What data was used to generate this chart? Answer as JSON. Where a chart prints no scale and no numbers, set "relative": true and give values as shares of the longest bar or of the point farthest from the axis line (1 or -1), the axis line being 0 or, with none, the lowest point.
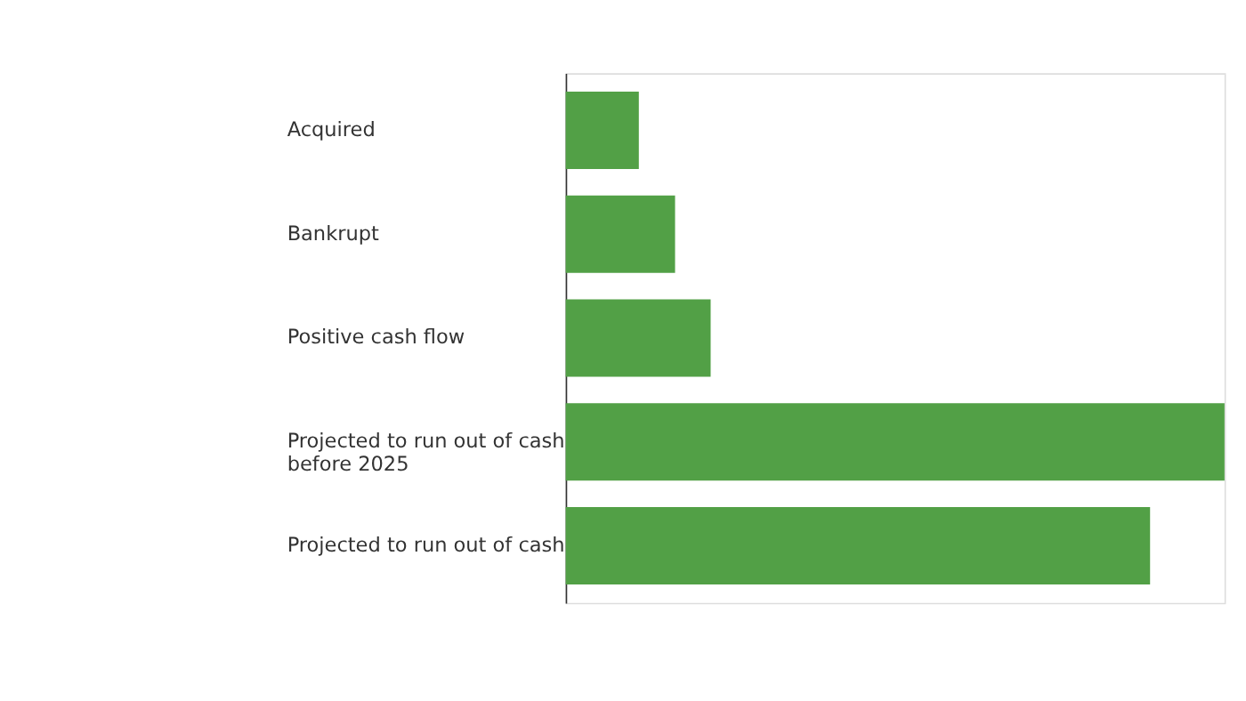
{
  "chart_data": {
    "type": "bar",
    "orientation": "horizontal",
    "relative": true,
    "categories": [
      "Acquired",
      "Bankrupt",
      "Positive cash flow",
      "Projected to run out of cash\nbefore 2025",
      "Projected to run out of cash"
    ],
    "values": [
      0.111,
      0.166,
      0.22,
      1,
      0.887
    ],
    "color": "#52a046"
  }
}
